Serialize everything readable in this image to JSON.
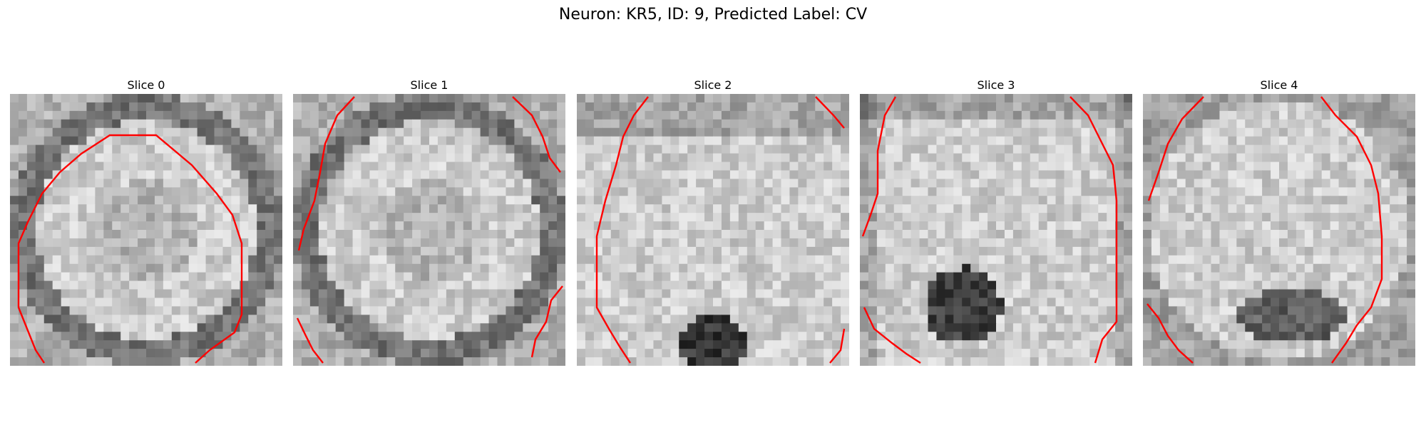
{
  "figure": {
    "title": "Neuron: KR5, ID: 9, Predicted Label: CV",
    "contour_color": "#ff0000"
  },
  "slices": [
    {
      "label": "Slice 0"
    },
    {
      "label": "Slice 1"
    },
    {
      "label": "Slice 2"
    },
    {
      "label": "Slice 3"
    },
    {
      "label": "Slice 4"
    }
  ]
}
